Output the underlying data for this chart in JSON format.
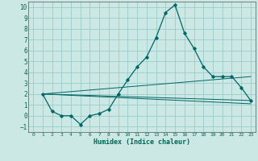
{
  "title": "",
  "xlabel": "Humidex (Indice chaleur)",
  "bg_color": "#cce8e4",
  "grid_color": "#99cccc",
  "line_color": "#006666",
  "xlim": [
    -0.5,
    23.5
  ],
  "ylim": [
    -1.5,
    10.5
  ],
  "xticks": [
    0,
    1,
    2,
    3,
    4,
    5,
    6,
    7,
    8,
    9,
    10,
    11,
    12,
    13,
    14,
    15,
    16,
    17,
    18,
    19,
    20,
    21,
    22,
    23
  ],
  "yticks": [
    -1,
    0,
    1,
    2,
    3,
    4,
    5,
    6,
    7,
    8,
    9,
    10
  ],
  "main_x": [
    1,
    2,
    3,
    4,
    5,
    6,
    7,
    8,
    9,
    10,
    11,
    12,
    13,
    14,
    15,
    16,
    17,
    18,
    19,
    20,
    21,
    22,
    23
  ],
  "main_y": [
    2,
    0.4,
    0,
    0,
    -0.8,
    0,
    0.2,
    0.6,
    2,
    3.3,
    4.5,
    5.4,
    7.2,
    9.5,
    10.2,
    7.6,
    6.2,
    4.5,
    3.6,
    3.6,
    3.6,
    2.6,
    1.4
  ],
  "trend1_x": [
    1,
    23
  ],
  "trend1_y": [
    2,
    1.4
  ],
  "trend2_x": [
    1,
    23
  ],
  "trend2_y": [
    2,
    3.6
  ],
  "trend3_x": [
    1,
    23
  ],
  "trend3_y": [
    2,
    1.1
  ]
}
